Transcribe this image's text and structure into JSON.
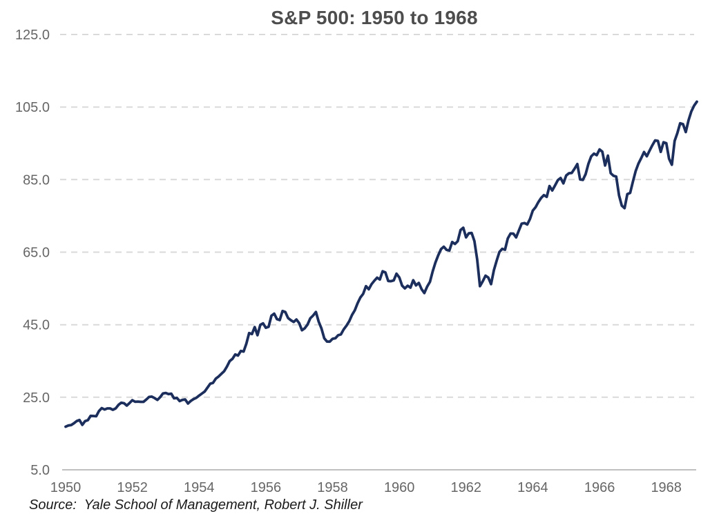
{
  "header": {
    "title": "S&P 500: 1950 to 1968"
  },
  "footer": {
    "source_note": "Source:  Yale School of Management, Robert J. Shiller"
  },
  "colors": {
    "line": "#1c2e5c",
    "gridline": "#d9d9d9",
    "axis_line": "#bfbfbf",
    "title_text": "#4d4d4d",
    "tick_text": "#666666",
    "source_text": "#1a1a1a",
    "background": "#ffffff"
  },
  "chart_data": {
    "type": "line",
    "title": "S&P 500: 1950 to 1968",
    "xlabel": "",
    "ylabel": "",
    "ylim": [
      5,
      125
    ],
    "ytick_values": [
      5,
      25,
      45,
      65,
      85,
      105,
      125
    ],
    "ytick_labels": [
      "5.0",
      "25.0",
      "45.0",
      "65.0",
      "85.0",
      "105.0",
      "125.0"
    ],
    "xtick_years": [
      1950,
      1952,
      1954,
      1956,
      1958,
      1960,
      1962,
      1964,
      1966,
      1968
    ],
    "xtick_labels": [
      "1950",
      "1952",
      "1954",
      "1956",
      "1958",
      "1960",
      "1962",
      "1964",
      "1966",
      "1968"
    ],
    "grid": "horizontal-dashed",
    "legend": "none",
    "series": [
      {
        "name": "S&P 500",
        "start_year": 1950,
        "frequency": "monthly",
        "values": [
          16.88,
          17.21,
          17.35,
          17.84,
          18.44,
          18.74,
          17.38,
          18.43,
          18.68,
          19.87,
          19.83,
          19.75,
          21.21,
          22.0,
          21.63,
          21.92,
          21.93,
          21.55,
          21.93,
          22.89,
          23.48,
          23.36,
          22.71,
          23.41,
          24.19,
          23.75,
          23.81,
          23.74,
          23.73,
          24.38,
          25.08,
          25.18,
          24.78,
          24.26,
          25.03,
          26.04,
          26.18,
          25.86,
          25.99,
          24.71,
          24.84,
          23.95,
          24.29,
          24.39,
          23.27,
          23.97,
          24.5,
          24.83,
          25.46,
          26.02,
          26.57,
          27.63,
          28.73,
          28.96,
          30.13,
          30.73,
          31.45,
          32.18,
          33.44,
          34.97,
          35.6,
          36.79,
          36.5,
          37.76,
          37.6,
          39.78,
          42.69,
          42.43,
          44.34,
          42.11,
          44.95,
          45.37,
          44.15,
          44.43,
          47.49,
          48.05,
          46.54,
          46.27,
          48.78,
          48.49,
          46.84,
          46.24,
          45.76,
          46.44,
          45.43,
          43.47,
          44.03,
          45.05,
          46.78,
          47.55,
          48.51,
          45.84,
          43.98,
          41.24,
          40.35,
          40.33,
          41.12,
          41.26,
          42.11,
          42.34,
          43.7,
          44.75,
          45.98,
          47.7,
          48.96,
          50.95,
          52.5,
          53.49,
          55.62,
          54.77,
          56.15,
          57.1,
          57.96,
          57.46,
          59.74,
          59.4,
          57.05,
          57.0,
          57.23,
          59.06,
          58.03,
          55.78,
          55.02,
          55.73,
          55.22,
          57.26,
          55.84,
          56.51,
          54.81,
          53.73,
          55.47,
          56.8,
          59.72,
          62.17,
          64.12,
          65.83,
          66.5,
          65.62,
          65.44,
          67.79,
          67.26,
          68.0,
          71.08,
          71.74,
          69.07,
          70.22,
          70.29,
          68.05,
          62.99,
          55.63,
          56.97,
          58.52,
          58.0,
          56.17,
          60.04,
          62.64,
          65.06,
          65.92,
          65.67,
          68.76,
          70.14,
          70.11,
          69.07,
          70.98,
          72.85,
          73.03,
          72.62,
          74.17,
          76.45,
          77.39,
          78.8,
          79.94,
          80.72,
          80.24,
          83.22,
          82.0,
          83.41,
          84.85,
          85.44,
          83.96,
          86.12,
          86.75,
          86.83,
          87.97,
          89.28,
          85.04,
          84.91,
          86.49,
          89.38,
          91.39,
          92.15,
          91.73,
          93.32,
          92.69,
          88.88,
          91.6,
          86.78,
          86.06,
          85.84,
          80.65,
          77.81,
          77.13,
          80.99,
          81.33,
          84.45,
          87.36,
          89.42,
          90.96,
          92.59,
          91.43,
          93.01,
          94.49,
          95.81,
          95.66,
          92.66,
          95.3,
          95.04,
          90.75,
          89.09,
          95.67,
          97.87,
          100.53,
          100.3,
          98.11,
          101.34,
          103.76,
          105.4,
          106.48
        ]
      }
    ]
  }
}
